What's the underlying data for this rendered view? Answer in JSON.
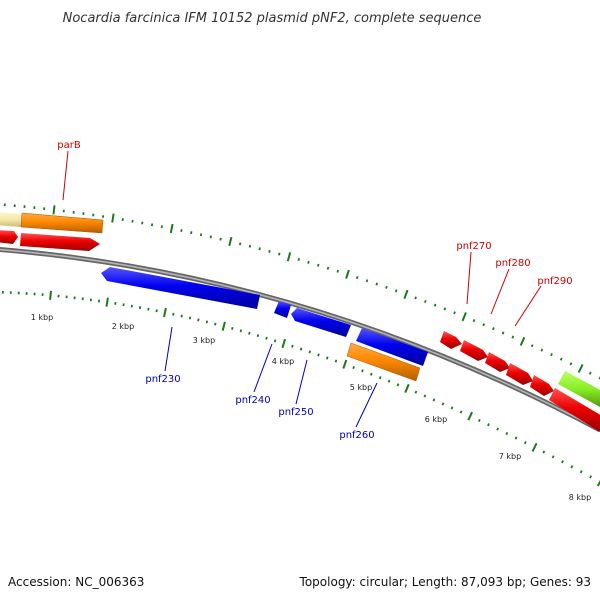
{
  "title": "Nocardia farcinica IFM 10152 plasmid pNF2, complete sequence",
  "footer": {
    "accession": "Accession: NC_006363",
    "summary": "Topology: circular; Length: 87,093 bp; Genes: 93"
  },
  "colors": {
    "backbone": "#808080",
    "tick": "#1a7a1a",
    "forward_label": "#cc0000",
    "reverse_label": "#0000bb",
    "red": "#ee0000",
    "blue": "#0000ee",
    "orange": "#ff8800",
    "pale_yellow": "#f5e8a8",
    "lime": "#88ee22"
  },
  "scale_labels": [
    "1 kbp",
    "2 kbp",
    "3 kbp",
    "4 kbp",
    "5 kbp",
    "6 kbp",
    "7 kbp",
    "8 kbp"
  ],
  "gene_labels": {
    "parB": "parB",
    "pnf270": "pnf270",
    "pnf280": "pnf280",
    "pnf290": "pnf290",
    "pnf230": "pnf230",
    "pnf240": "pnf240",
    "pnf250": "pnf250",
    "pnf260": "pnf260"
  }
}
